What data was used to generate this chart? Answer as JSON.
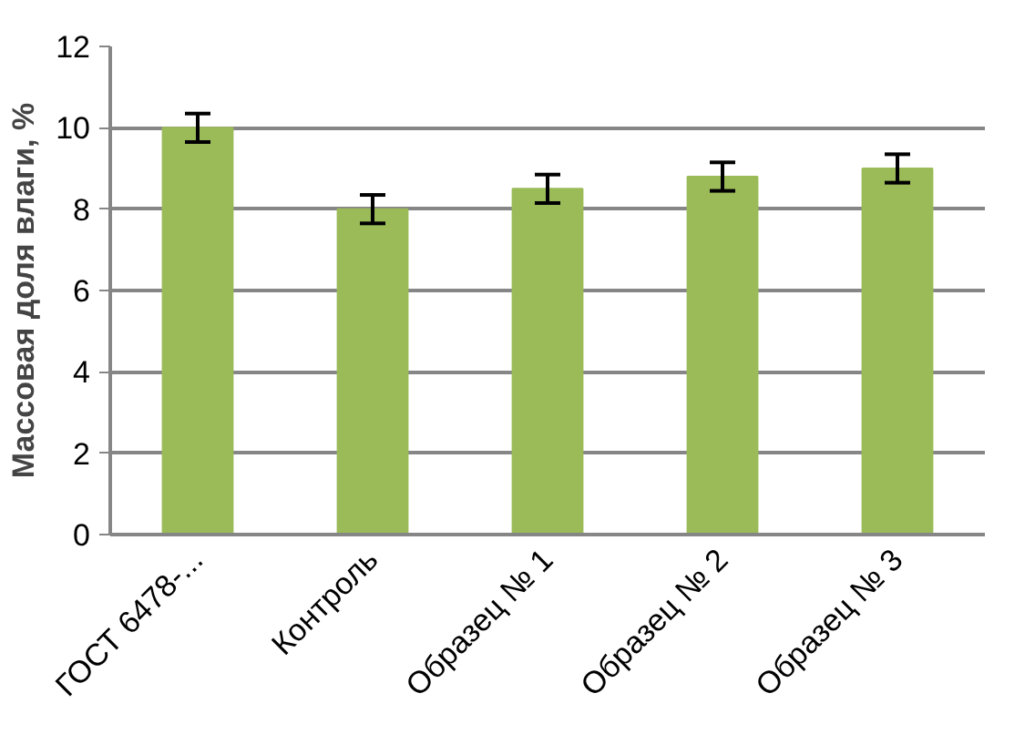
{
  "chart_data": {
    "type": "bar",
    "ylabel": "Массовая доля влаги, %",
    "categories": [
      "ГОСТ 6478-...",
      "Контроль",
      "Образец № 1",
      "Образец № 2",
      "Образец № 3"
    ],
    "values": [
      10,
      8,
      8.5,
      8.8,
      9.0
    ],
    "errors": [
      0.35,
      0.35,
      0.35,
      0.35,
      0.35
    ],
    "color": "#9bbb59",
    "ylim": [
      0,
      12
    ],
    "yticks": [
      0,
      2,
      4,
      6,
      8,
      10,
      12
    ],
    "grid": "y"
  }
}
